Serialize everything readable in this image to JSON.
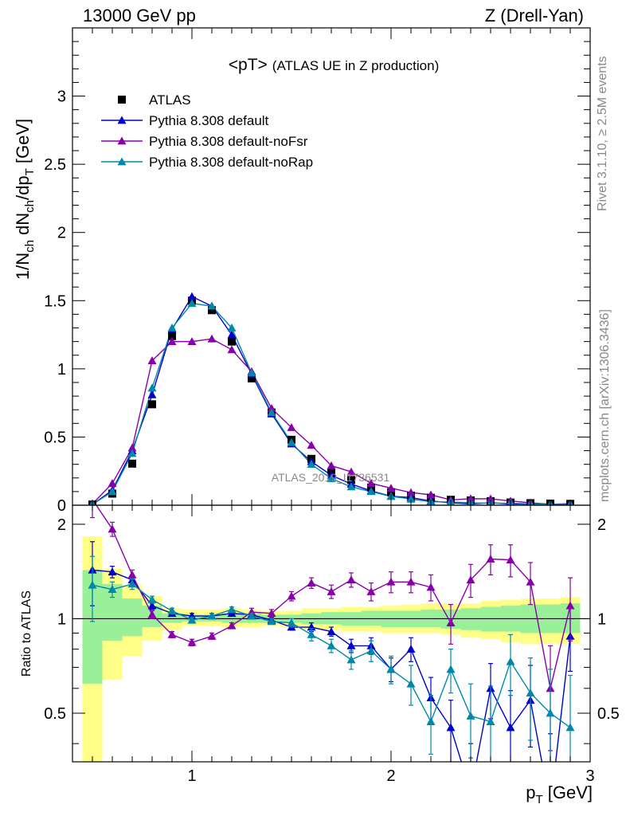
{
  "header": {
    "left": "13000 GeV pp",
    "right": "Z (Drell-Yan)"
  },
  "side": {
    "rivet": "Rivet 3.1.10, ≥ 2.5M events",
    "source": "mcplots.cern.ch [arXiv:1306.3436]"
  },
  "chart_data": {
    "type": "scatter",
    "title": "<pT> (ATLAS UE in Z production)",
    "title_main": "<pT>",
    "title_sub": "(ATLAS UE in Z production)",
    "watermark": "ATLAS_2019_I1736531",
    "ylabel_main": {
      "base": "1/N",
      "sub1": "ch",
      "mid": " dN",
      "sub2": "ch",
      "mid2": "/dp",
      "sub3": "T",
      "tail": " [GeV]"
    },
    "ylabel_ratio": "Ratio to ATLAS",
    "xlabel": {
      "base": "p",
      "sub": "T",
      "tail": " [GeV]"
    },
    "xlim": [
      0.4,
      3.0
    ],
    "ylim_main": [
      0,
      3.5
    ],
    "ylim_ratio": [
      0.35,
      2.3
    ],
    "x_ticks": [
      "1",
      "2",
      "3"
    ],
    "y_ticks_main": [
      "0",
      "0.5",
      "1",
      "1.5",
      "2",
      "2.5",
      "3"
    ],
    "y_ticks_ratio": [
      "0.5",
      "1",
      "2"
    ],
    "legend_position": "top-left",
    "x": [
      0.5,
      0.6,
      0.7,
      0.8,
      0.9,
      1.0,
      1.1,
      1.2,
      1.3,
      1.4,
      1.5,
      1.6,
      1.7,
      1.8,
      1.9,
      2.0,
      2.1,
      2.2,
      2.3,
      2.4,
      2.5,
      2.6,
      2.7,
      2.8,
      2.9
    ],
    "series": [
      {
        "name": "ATLAS",
        "color": "#000000",
        "marker": "square",
        "values": [
          0.005,
          0.085,
          0.305,
          0.74,
          1.24,
          1.5,
          1.43,
          1.2,
          0.93,
          0.68,
          0.48,
          0.34,
          0.24,
          0.185,
          0.13,
          0.095,
          0.07,
          0.055,
          0.04,
          0.035,
          0.03,
          0.02,
          0.015,
          0.012,
          0.01
        ]
      },
      {
        "name": "Pythia 8.308 default",
        "color": "#0000cc",
        "marker": "triangle",
        "values": [
          0.005,
          0.11,
          0.4,
          0.81,
          1.29,
          1.53,
          1.46,
          1.25,
          0.96,
          0.67,
          0.45,
          0.32,
          0.22,
          0.155,
          0.105,
          0.066,
          0.056,
          0.031,
          0.018,
          0.01,
          0.018,
          0.009,
          0.008,
          0.003,
          0.009
        ]
      },
      {
        "name": "Pythia 8.308 default-noFsr",
        "color": "#8800aa",
        "marker": "triangle",
        "values": [
          0.01,
          0.16,
          0.42,
          1.06,
          1.2,
          1.2,
          1.22,
          1.14,
          0.98,
          0.71,
          0.57,
          0.44,
          0.29,
          0.245,
          0.16,
          0.125,
          0.093,
          0.076,
          0.039,
          0.048,
          0.047,
          0.031,
          0.018,
          0.007,
          0.011
        ]
      },
      {
        "name": "Pythia 8.308 default-noRap",
        "color": "#0088aa",
        "marker": "triangle",
        "values": [
          0.005,
          0.1,
          0.38,
          0.86,
          1.3,
          1.48,
          1.46,
          1.3,
          0.97,
          0.68,
          0.46,
          0.3,
          0.195,
          0.135,
          0.1,
          0.065,
          0.045,
          0.025,
          0.024,
          0.017,
          0.015,
          0.015,
          0.009,
          0.006,
          0.0045
        ]
      }
    ],
    "ratio": {
      "band_yellow": [
        [
          0.35,
          1.83
        ],
        [
          0.64,
          1.44
        ],
        [
          0.76,
          1.28
        ],
        [
          0.85,
          1.18
        ],
        [
          0.92,
          1.08
        ],
        [
          0.95,
          1.07
        ],
        [
          0.95,
          1.07
        ],
        [
          0.94,
          1.08
        ],
        [
          0.94,
          1.07
        ],
        [
          0.95,
          1.06
        ],
        [
          0.94,
          1.06
        ],
        [
          0.93,
          1.08
        ],
        [
          0.92,
          1.08
        ],
        [
          0.91,
          1.09
        ],
        [
          0.91,
          1.09
        ],
        [
          0.9,
          1.1
        ],
        [
          0.9,
          1.11
        ],
        [
          0.9,
          1.12
        ],
        [
          0.89,
          1.12
        ],
        [
          0.87,
          1.12
        ],
        [
          0.86,
          1.14
        ],
        [
          0.84,
          1.15
        ],
        [
          0.83,
          1.16
        ],
        [
          0.83,
          1.16
        ],
        [
          0.83,
          1.17
        ]
      ],
      "band_green": [
        [
          0.62,
          1.43
        ],
        [
          0.85,
          1.29
        ],
        [
          0.88,
          1.16
        ],
        [
          0.94,
          1.1
        ],
        [
          0.97,
          1.04
        ],
        [
          0.98,
          1.03
        ],
        [
          0.98,
          1.03
        ],
        [
          0.97,
          1.04
        ],
        [
          0.97,
          1.04
        ],
        [
          0.97,
          1.03
        ],
        [
          0.97,
          1.03
        ],
        [
          0.96,
          1.04
        ],
        [
          0.96,
          1.05
        ],
        [
          0.95,
          1.05
        ],
        [
          0.95,
          1.06
        ],
        [
          0.94,
          1.06
        ],
        [
          0.94,
          1.06
        ],
        [
          0.94,
          1.07
        ],
        [
          0.93,
          1.07
        ],
        [
          0.92,
          1.08
        ],
        [
          0.91,
          1.09
        ],
        [
          0.91,
          1.1
        ],
        [
          0.9,
          1.11
        ],
        [
          0.9,
          1.11
        ],
        [
          0.9,
          1.12
        ]
      ],
      "series": [
        {
          "name": "Pythia 8.308 default",
          "values": [
            1.43,
            1.41,
            1.33,
            1.1,
            1.04,
            1.02,
            1.02,
            1.04,
            1.03,
            0.99,
            0.94,
            0.94,
            0.91,
            0.82,
            0.82,
            0.69,
            0.8,
            0.56,
            0.45,
            0.28,
            0.6,
            0.45,
            0.55,
            0.25,
            0.88
          ],
          "errors": [
            0.33,
            0.06,
            0.04,
            0.03,
            0.02,
            0.02,
            0.02,
            0.02,
            0.02,
            0.02,
            0.02,
            0.03,
            0.03,
            0.04,
            0.05,
            0.06,
            0.07,
            0.09,
            0.1,
            0.12,
            0.12,
            0.14,
            0.16,
            0.18,
            0.2
          ]
        },
        {
          "name": "Pythia 8.308 default-noFsr",
          "values": [
            2.4,
            1.93,
            1.38,
            1.03,
            0.89,
            0.84,
            0.88,
            0.95,
            1.05,
            1.04,
            1.18,
            1.3,
            1.22,
            1.33,
            1.22,
            1.31,
            1.31,
            1.26,
            0.97,
            1.33,
            1.55,
            1.54,
            1.31,
            0.6,
            1.1
          ],
          "errors": [
            0.3,
            0.1,
            0.05,
            0.03,
            0.02,
            0.02,
            0.02,
            0.02,
            0.03,
            0.03,
            0.04,
            0.05,
            0.06,
            0.07,
            0.08,
            0.1,
            0.1,
            0.12,
            0.14,
            0.16,
            0.17,
            0.18,
            0.2,
            0.22,
            0.25
          ]
        },
        {
          "name": "Pythia 8.308 default-noRap",
          "values": [
            1.28,
            1.24,
            1.29,
            1.15,
            1.06,
            0.99,
            1.02,
            1.07,
            1.02,
            0.98,
            0.97,
            0.89,
            0.82,
            0.74,
            0.79,
            0.69,
            0.62,
            0.47,
            0.69,
            0.49,
            0.47,
            0.73,
            0.58,
            0.5,
            0.45
          ],
          "errors": [
            0.3,
            0.07,
            0.05,
            0.03,
            0.02,
            0.02,
            0.02,
            0.02,
            0.02,
            0.02,
            0.03,
            0.04,
            0.04,
            0.05,
            0.06,
            0.07,
            0.09,
            0.1,
            0.11,
            0.13,
            0.14,
            0.16,
            0.17,
            0.19,
            0.21
          ]
        }
      ]
    }
  }
}
